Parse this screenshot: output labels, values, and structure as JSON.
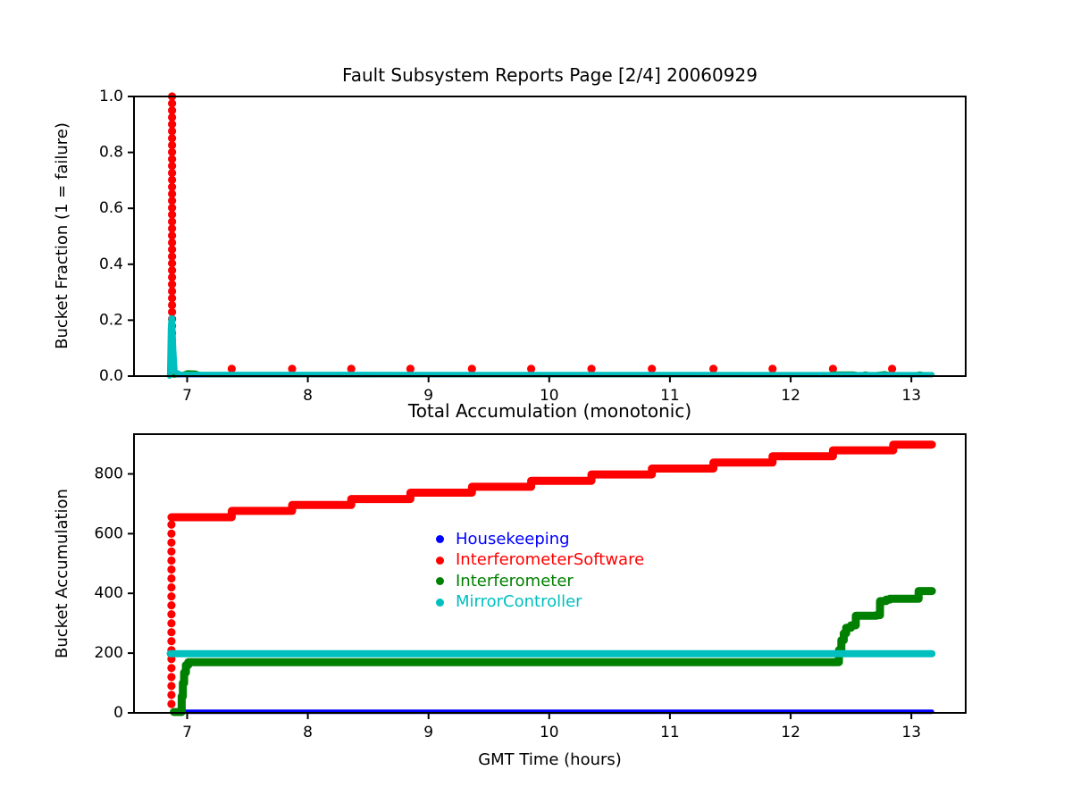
{
  "figure": {
    "background": "#ffffff",
    "axis_color": "#000000"
  },
  "legend": {
    "items": [
      {
        "label": "Housekeeping",
        "color": "#0000ff"
      },
      {
        "label": "InterferometerSoftware",
        "color": "#ff0000"
      },
      {
        "label": "Interferometer",
        "color": "#008000"
      },
      {
        "label": "MirrorController",
        "color": "#00bfbf"
      }
    ]
  },
  "chart_data": [
    {
      "id": "bucket-fraction-vs-time",
      "type": "line",
      "title": "Fault Subsystem Reports Page [2/4] 20060929",
      "xlabel": "",
      "ylabel": "Bucket Fraction (1 = failure)",
      "xlim": [
        6.56,
        13.45
      ],
      "ylim": [
        0,
        1
      ],
      "grid": false,
      "xticks": [
        {
          "v": 7,
          "label": "7"
        },
        {
          "v": 8,
          "label": "8"
        },
        {
          "v": 9,
          "label": "9"
        },
        {
          "v": 10,
          "label": "10"
        },
        {
          "v": 11,
          "label": "11"
        },
        {
          "v": 12,
          "label": "12"
        },
        {
          "v": 13,
          "label": "13"
        }
      ],
      "yticks": [
        {
          "v": 0,
          "label": "0.0"
        },
        {
          "v": 0.2,
          "label": "0.2"
        },
        {
          "v": 0.4,
          "label": "0.4"
        },
        {
          "v": 0.6,
          "label": "0.6"
        },
        {
          "v": 0.8,
          "label": "0.8"
        },
        {
          "v": 1.0,
          "label": "1.0"
        }
      ],
      "series": [
        {
          "name": "Housekeeping",
          "color": "#0000ff",
          "draw": [
            {
              "kind": "line",
              "lw": 4,
              "points": [
                [
                  6.88,
                  0.002
                ],
                [
                  13.17,
                  0.002
                ]
              ]
            }
          ]
        },
        {
          "name": "InterferometerSoftware",
          "color": "#ff0000",
          "draw": [
            {
              "kind": "vdots",
              "t": 6.875,
              "y0": 0.03,
              "y1": 1.0,
              "n": 40,
              "r": 4.6
            },
            {
              "kind": "dots",
              "r": 4.6,
              "points": [
                [
                  7.37,
                  0.026
                ],
                [
                  7.87,
                  0.026
                ],
                [
                  8.36,
                  0.026
                ],
                [
                  8.85,
                  0.026
                ],
                [
                  9.36,
                  0.026
                ],
                [
                  9.85,
                  0.026
                ],
                [
                  10.35,
                  0.026
                ],
                [
                  10.85,
                  0.026
                ],
                [
                  11.36,
                  0.026
                ],
                [
                  11.85,
                  0.026
                ],
                [
                  12.35,
                  0.026
                ],
                [
                  12.84,
                  0.026
                ]
              ]
            }
          ]
        },
        {
          "name": "Interferometer",
          "color": "#008000",
          "draw": [
            {
              "kind": "line",
              "lw": 5,
              "points": [
                [
                  6.89,
                  0.002
                ],
                [
                  6.96,
                  0.006
                ],
                [
                  7.0,
                  0.013
                ],
                [
                  7.07,
                  0.012
                ],
                [
                  7.12,
                  0.004
                ],
                [
                  12.3,
                  0.004
                ],
                [
                  12.36,
                  0.009
                ],
                [
                  12.52,
                  0.009
                ],
                [
                  12.58,
                  0.004
                ],
                [
                  12.62,
                  0.009
                ],
                [
                  12.66,
                  0.004
                ],
                [
                  12.78,
                  0.01
                ],
                [
                  12.84,
                  0.004
                ],
                [
                  13.02,
                  0.004
                ],
                [
                  13.07,
                  0.009
                ],
                [
                  13.12,
                  0.004
                ]
              ]
            }
          ]
        },
        {
          "name": "MirrorController",
          "color": "#00bfbf",
          "draw": [
            {
              "kind": "line",
              "lw": 6,
              "points": [
                [
                  6.855,
                  0.0
                ],
                [
                  6.862,
                  0.17
                ],
                [
                  6.868,
                  0.208
                ],
                [
                  6.878,
                  0.208
                ],
                [
                  6.888,
                  0.1
                ],
                [
                  6.9,
                  0.015
                ],
                [
                  6.95,
                  0.006
                ],
                [
                  13.17,
                  0.005
                ]
              ]
            }
          ]
        }
      ]
    },
    {
      "id": "bucket-accumulation-vs-time",
      "type": "line",
      "title": "Total Accumulation (monotonic)",
      "xlabel": "GMT Time (hours)",
      "ylabel": "Bucket Accumulation",
      "xlim": [
        6.56,
        13.45
      ],
      "ylim": [
        0,
        933
      ],
      "grid": false,
      "legend_position": "center",
      "xticks": [
        {
          "v": 7,
          "label": "7"
        },
        {
          "v": 8,
          "label": "8"
        },
        {
          "v": 9,
          "label": "9"
        },
        {
          "v": 10,
          "label": "10"
        },
        {
          "v": 11,
          "label": "11"
        },
        {
          "v": 12,
          "label": "12"
        },
        {
          "v": 13,
          "label": "13"
        }
      ],
      "yticks": [
        {
          "v": 0,
          "label": "0"
        },
        {
          "v": 200,
          "label": "200"
        },
        {
          "v": 400,
          "label": "400"
        },
        {
          "v": 600,
          "label": "600"
        },
        {
          "v": 800,
          "label": "800"
        }
      ],
      "series": [
        {
          "name": "Housekeeping",
          "color": "#0000ff",
          "draw": [
            {
              "kind": "line",
              "lw": 5,
              "points": [
                [
                  6.88,
                  4
                ],
                [
                  13.17,
                  4
                ]
              ]
            }
          ]
        },
        {
          "name": "InterferometerSoftware",
          "color": "#ff0000",
          "draw": [
            {
              "kind": "vdots",
              "t": 6.87,
              "y0": 30,
              "y1": 630,
              "n": 21,
              "r": 4.6
            },
            {
              "kind": "steps",
              "lw": 9,
              "points": [
                [
                  6.87,
                  655
                ],
                [
                  7.37,
                  676
                ],
                [
                  7.87,
                  696
                ],
                [
                  8.36,
                  716
                ],
                [
                  8.85,
                  737
                ],
                [
                  9.36,
                  757
                ],
                [
                  9.85,
                  777
                ],
                [
                  10.35,
                  798
                ],
                [
                  10.85,
                  818
                ],
                [
                  11.36,
                  838
                ],
                [
                  11.85,
                  859
                ],
                [
                  12.35,
                  879
                ],
                [
                  12.85,
                  898
                ],
                [
                  13.17,
                  898
                ]
              ]
            }
          ]
        },
        {
          "name": "Interferometer",
          "color": "#008000",
          "draw": [
            {
              "kind": "steps",
              "lw": 9,
              "points": [
                [
                  6.89,
                  3
                ],
                [
                  6.945,
                  3
                ],
                [
                  6.955,
                  55
                ],
                [
                  6.965,
                  100
                ],
                [
                  6.975,
                  135
                ],
                [
                  6.99,
                  160
                ],
                [
                  7.01,
                  170
                ],
                [
                  12.38,
                  170
                ],
                [
                  12.4,
                  210
                ],
                [
                  12.42,
                  243
                ],
                [
                  12.44,
                  266
                ],
                [
                  12.46,
                  285
                ],
                [
                  12.5,
                  293
                ],
                [
                  12.54,
                  325
                ],
                [
                  12.71,
                  327
                ],
                [
                  12.74,
                  374
                ],
                [
                  12.79,
                  379
                ],
                [
                  12.82,
                  382
                ],
                [
                  13.03,
                  382
                ],
                [
                  13.06,
                  408
                ],
                [
                  13.17,
                  408
                ]
              ]
            }
          ]
        },
        {
          "name": "MirrorController",
          "color": "#00bfbf",
          "draw": [
            {
              "kind": "line",
              "lw": 8,
              "points": [
                [
                  6.86,
                  198
                ],
                [
                  13.17,
                  198
                ]
              ]
            }
          ]
        }
      ]
    }
  ]
}
